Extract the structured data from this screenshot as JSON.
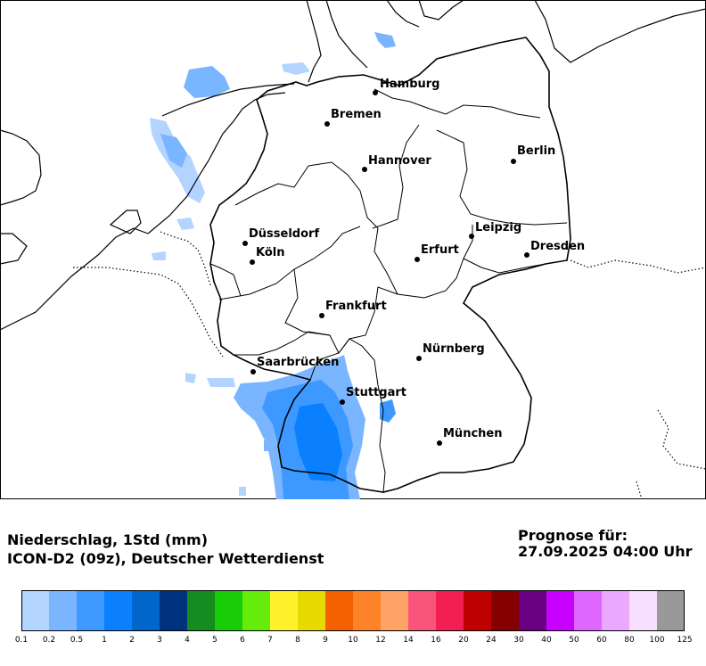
{
  "map": {
    "cities": [
      {
        "name": "Hamburg"
      },
      {
        "name": "Bremen"
      },
      {
        "name": "Berlin"
      },
      {
        "name": "Hannover"
      },
      {
        "name": "Leipzig"
      },
      {
        "name": "Dresden"
      },
      {
        "name": "Düsseldorf"
      },
      {
        "name": "Köln"
      },
      {
        "name": "Erfurt"
      },
      {
        "name": "Frankfurt"
      },
      {
        "name": "Nürnberg"
      },
      {
        "name": "Saarbrücken"
      },
      {
        "name": "Stuttgart"
      },
      {
        "name": "München"
      }
    ]
  },
  "caption": {
    "line1": "Niederschlag, 1Std (mm)",
    "line2": "ICON-D2 (09z), Deutscher Wetterdienst"
  },
  "forecast": {
    "label": "Prognose für:",
    "datetime": "27.09.2025 04:00 Uhr"
  },
  "legend": {
    "ticks": [
      "0.1",
      "0.2",
      "0.5",
      "1",
      "2",
      "3",
      "4",
      "5",
      "6",
      "7",
      "8",
      "9",
      "10",
      "12",
      "14",
      "16",
      "20",
      "24",
      "30",
      "40",
      "50",
      "60",
      "80",
      "100",
      "125"
    ],
    "colors": [
      "#b3d4ff",
      "#7ab6ff",
      "#3d99ff",
      "#0a80ff",
      "#0066cc",
      "#00337f",
      "#158c1f",
      "#18cc08",
      "#66ec0a",
      "#fff22c",
      "#e6da00",
      "#f56000",
      "#ff8429",
      "#ffa366",
      "#f9547a",
      "#f21f52",
      "#bf0000",
      "#870000",
      "#690082",
      "#c800ff",
      "#df66ff",
      "#eba8ff",
      "#f7e0ff",
      "#999999"
    ]
  }
}
